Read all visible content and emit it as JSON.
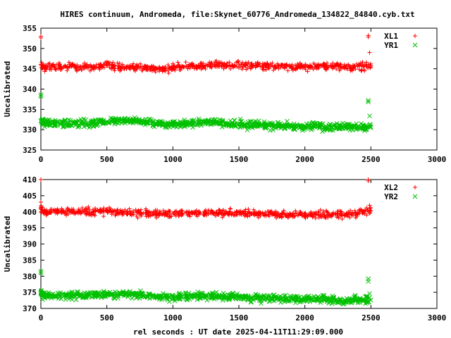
{
  "title": "HIRES continuum, Andromeda, file:Skynet_60776_Andromeda_134822_84840.cyb.txt",
  "xlabel": "rel seconds : UT date 2025-04-11T11:29:09.000",
  "colors": {
    "red": "#ff0000",
    "green": "#00c000"
  },
  "chart_data": [
    {
      "type": "scatter",
      "ylabel": "Uncalibrated",
      "xlim": [
        0,
        3000
      ],
      "ylim": [
        325,
        355
      ],
      "xticks": [
        "0",
        "500",
        "1000",
        "1500",
        "2000",
        "2500",
        "3000"
      ],
      "yticks": [
        "325",
        "330",
        "335",
        "340",
        "345",
        "350",
        "355"
      ],
      "legend_position": "top-right",
      "series": [
        {
          "name": "XL1",
          "marker": "plus",
          "color": "#ff0000",
          "x": [
            0,
            20,
            50,
            100,
            150,
            200,
            250,
            300,
            350,
            400,
            450,
            500,
            550,
            600,
            650,
            700,
            750,
            800,
            850,
            900,
            950,
            1000,
            1050,
            1100,
            1150,
            1200,
            1250,
            1300,
            1350,
            1400,
            1450,
            1500,
            1550,
            1600,
            1650,
            1700,
            1750,
            1800,
            1850,
            1900,
            1950,
            2000,
            2050,
            2100,
            2150,
            2200,
            2250,
            2300,
            2350,
            2400,
            2450,
            2500
          ],
          "y": [
            346.0,
            345.3,
            345.5,
            345.6,
            345.4,
            345.6,
            345.5,
            345.3,
            345.6,
            345.5,
            345.6,
            345.8,
            345.5,
            345.4,
            345.3,
            345.5,
            345.2,
            345.1,
            345.0,
            344.9,
            345.0,
            345.3,
            345.5,
            345.5,
            345.6,
            345.6,
            345.8,
            346.0,
            345.9,
            345.8,
            345.9,
            346.0,
            345.8,
            345.9,
            346.0,
            345.7,
            345.8,
            345.7,
            345.7,
            345.6,
            345.5,
            345.4,
            345.5,
            345.5,
            345.6,
            345.6,
            345.6,
            345.4,
            345.4,
            345.6,
            345.6,
            345.8
          ]
        },
        {
          "name": "YR1",
          "marker": "cross",
          "color": "#00c000",
          "x": [
            0,
            20,
            50,
            100,
            150,
            200,
            250,
            300,
            350,
            400,
            450,
            500,
            550,
            600,
            650,
            700,
            750,
            800,
            850,
            900,
            950,
            1000,
            1050,
            1100,
            1150,
            1200,
            1250,
            1300,
            1350,
            1400,
            1450,
            1500,
            1550,
            1600,
            1650,
            1700,
            1750,
            1800,
            1850,
            1900,
            1950,
            2000,
            2050,
            2100,
            2150,
            2200,
            2250,
            2300,
            2350,
            2400,
            2450,
            2500
          ],
          "y": [
            332.2,
            331.8,
            331.6,
            331.6,
            331.4,
            331.6,
            331.5,
            331.6,
            331.5,
            331.6,
            331.8,
            331.9,
            332.0,
            332.1,
            332.4,
            332.3,
            332.0,
            331.8,
            331.6,
            331.5,
            331.2,
            331.3,
            331.4,
            331.5,
            331.6,
            331.8,
            332.0,
            331.8,
            331.6,
            331.6,
            331.4,
            331.5,
            331.3,
            331.2,
            331.1,
            331.0,
            331.1,
            331.0,
            331.0,
            330.8,
            330.8,
            330.7,
            330.7,
            330.8,
            330.6,
            330.6,
            330.5,
            330.6,
            330.6,
            330.7,
            330.6,
            330.6
          ]
        }
      ],
      "outliers": [
        {
          "series": "XL1",
          "x": [
            0,
            0,
            2480,
            2480,
            2490
          ],
          "y": [
            353.0,
            352.6,
            353.2,
            352.8,
            349.0
          ]
        },
        {
          "series": "YR1",
          "x": [
            0,
            0,
            2480,
            2480,
            2490
          ],
          "y": [
            338.6,
            338.2,
            337.2,
            336.8,
            333.4
          ]
        }
      ]
    },
    {
      "type": "scatter",
      "ylabel": "Uncalibrated",
      "xlim": [
        0,
        3000
      ],
      "ylim": [
        370,
        410
      ],
      "xticks": [
        "0",
        "500",
        "1000",
        "1500",
        "2000",
        "2500",
        "3000"
      ],
      "yticks": [
        "370",
        "375",
        "380",
        "385",
        "390",
        "395",
        "400",
        "405",
        "410"
      ],
      "legend_position": "top-right",
      "series": [
        {
          "name": "XL2",
          "marker": "plus",
          "color": "#ff0000",
          "x": [
            0,
            20,
            50,
            100,
            150,
            200,
            250,
            300,
            350,
            400,
            450,
            500,
            550,
            600,
            650,
            700,
            750,
            800,
            850,
            900,
            950,
            1000,
            1050,
            1100,
            1150,
            1200,
            1250,
            1300,
            1350,
            1400,
            1450,
            1500,
            1550,
            1600,
            1650,
            1700,
            1750,
            1800,
            1850,
            1900,
            1950,
            2000,
            2050,
            2100,
            2150,
            2200,
            2250,
            2300,
            2350,
            2400,
            2450,
            2500
          ],
          "y": [
            401.0,
            400.0,
            400.0,
            400.2,
            400.4,
            400.3,
            400.0,
            400.2,
            400.1,
            399.9,
            400.1,
            400.3,
            400.1,
            400.0,
            399.8,
            399.8,
            399.6,
            399.5,
            399.3,
            399.2,
            399.3,
            399.5,
            399.6,
            399.7,
            399.6,
            399.5,
            399.6,
            399.7,
            399.6,
            399.5,
            399.6,
            399.7,
            399.6,
            399.5,
            399.5,
            399.3,
            399.3,
            399.2,
            399.2,
            399.0,
            399.0,
            398.9,
            399.0,
            399.1,
            399.1,
            399.2,
            399.3,
            399.3,
            399.4,
            399.6,
            399.9,
            400.3
          ]
        },
        {
          "name": "YR2",
          "marker": "cross",
          "color": "#00c000",
          "x": [
            0,
            20,
            50,
            100,
            150,
            200,
            250,
            300,
            350,
            400,
            450,
            500,
            550,
            600,
            650,
            700,
            750,
            800,
            850,
            900,
            950,
            1000,
            1050,
            1100,
            1150,
            1200,
            1250,
            1300,
            1350,
            1400,
            1450,
            1500,
            1550,
            1600,
            1650,
            1700,
            1750,
            1800,
            1850,
            1900,
            1950,
            2000,
            2050,
            2100,
            2150,
            2200,
            2250,
            2300,
            2350,
            2400,
            2450,
            2500
          ],
          "y": [
            374.8,
            374.2,
            374.0,
            374.0,
            373.9,
            374.0,
            373.9,
            374.0,
            374.0,
            374.1,
            374.2,
            374.3,
            374.3,
            374.4,
            374.5,
            374.4,
            374.2,
            374.0,
            373.8,
            373.6,
            373.5,
            373.5,
            373.6,
            373.7,
            373.8,
            373.9,
            374.0,
            373.9,
            373.8,
            373.7,
            373.6,
            373.6,
            373.5,
            373.4,
            373.3,
            373.2,
            373.2,
            373.1,
            373.1,
            373.0,
            372.9,
            372.8,
            372.8,
            372.8,
            372.7,
            372.6,
            372.5,
            372.5,
            372.5,
            372.6,
            372.6,
            372.6
          ]
        }
      ],
      "outliers": [
        {
          "series": "XL2",
          "x": [
            0,
            0,
            2480,
            2480,
            2490
          ],
          "y": [
            410.0,
            403.0,
            410.0,
            409.6,
            402.0
          ]
        },
        {
          "series": "YR2",
          "x": [
            0,
            0,
            2480,
            2480,
            2490
          ],
          "y": [
            381.5,
            381.0,
            379.2,
            378.4,
            374.6
          ]
        }
      ]
    }
  ]
}
